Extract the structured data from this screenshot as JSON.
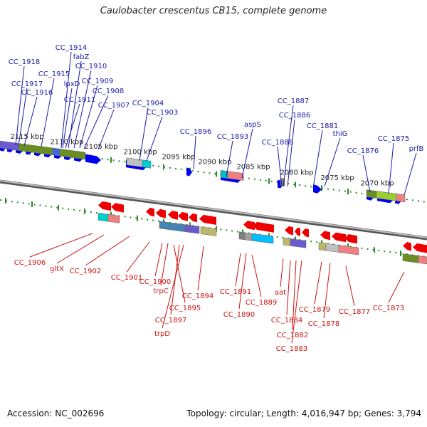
{
  "title": "Caulobacter crescentus CB15, complete genome",
  "footer": {
    "accession": "Accession: NC_002696",
    "summary": "Topology: circular; Length: 4,016,947 bp; Genes: 3,794"
  },
  "colors": {
    "forward_gene": "#0000ee",
    "reverse_gene": "#ee0000",
    "forward_label": "#1a1aa8",
    "reverse_label": "#cc1111",
    "ticks": "#2e8b2e",
    "backbone": "#8a8a8a"
  },
  "ruler_labels": [
    "2115 kbp",
    "2110 kbp",
    "2105 kbp",
    "2100 kbp",
    "2095 kbp",
    "2090 kbp",
    "2085 kbp",
    "2080 kbp",
    "2075 kbp",
    "2070 kbp"
  ],
  "forward_labels": [
    "CC_1918",
    "CC_1914",
    "fabZ",
    "CC_1910",
    "CC_1915",
    "CC_1917",
    "lpxD",
    "CC_1909",
    "CC_1916",
    "CC_1908",
    "CC_1911",
    "CC_1907",
    "CC_1904",
    "CC_1903",
    "CC_1896",
    "aspS",
    "CC_1893",
    "CC_1887",
    "CC_1886",
    "CC_1888",
    "CC_1881",
    "thiG",
    "CC_1875",
    "CC_1876",
    "prfB"
  ],
  "reverse_labels": [
    "CC_1906",
    "gltX",
    "CC_1902",
    "CC_1901",
    "CC_1900",
    "trpC",
    "CC_1895",
    "CC_1894",
    "CC_1897",
    "trpD",
    "CC_1891",
    "CC_1889",
    "CC_1890",
    "aat",
    "CC_1884",
    "CC_1882",
    "CC_1883",
    "CC_1879",
    "CC_1878",
    "CC_1877",
    "CC_1873"
  ]
}
